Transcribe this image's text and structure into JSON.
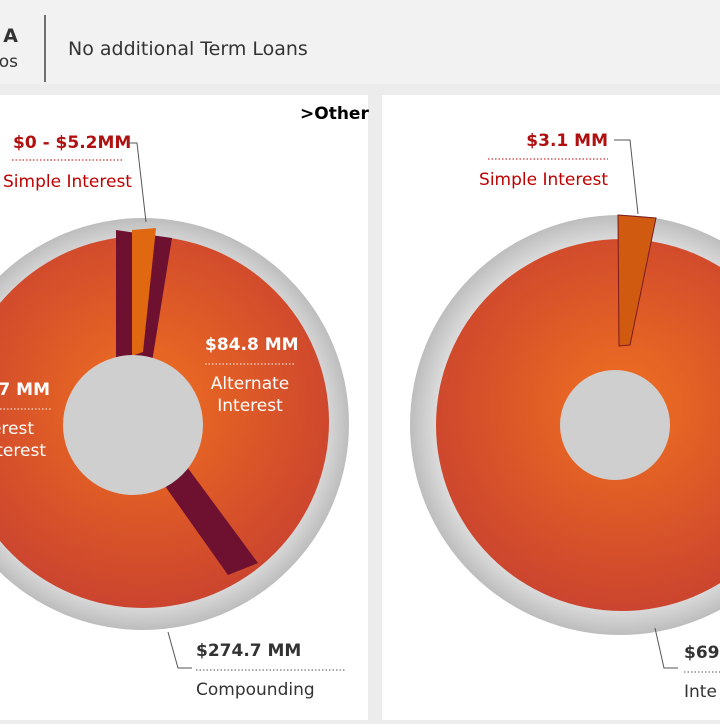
{
  "header": {
    "title": "A",
    "subtitle": "os",
    "heading": "No additional Term Loans"
  },
  "panels": [
    {
      "tag": ">Other",
      "labels": [
        {
          "value": "$0 - $5.2MM",
          "caption": "Simple Interest"
        },
        {
          "value": "$84.8 MM",
          "caption_lines": [
            "Alternate",
            "Interest"
          ]
        },
        {
          "value": "7 MM",
          "caption_lines": [
            "erest",
            "terest"
          ]
        },
        {
          "value": "$274.7 MM",
          "caption": "Compounding"
        }
      ]
    },
    {
      "labels": [
        {
          "value": "$3.1 MM",
          "caption": "Simple Interest"
        },
        {
          "value": "$69.",
          "caption": "Inte"
        }
      ]
    }
  ]
}
